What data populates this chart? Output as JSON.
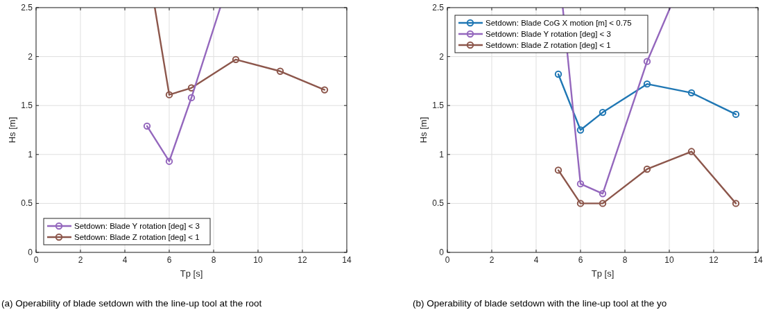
{
  "chart_data": [
    {
      "type": "line",
      "xlabel": "Tp [s]",
      "ylabel": "Hs [m]",
      "xlim": [
        0,
        14
      ],
      "ylim": [
        0,
        2.5
      ],
      "xticks": [
        0,
        2,
        4,
        6,
        8,
        10,
        12,
        14
      ],
      "yticks": [
        0,
        0.5,
        1,
        1.5,
        2,
        2.5
      ],
      "grid": true,
      "legend": "bottom left",
      "marker": "circle",
      "line_style": "solid",
      "annotations": [
        "(a) Operability of blade setdown with the line-up tool at the root"
      ],
      "series": [
        {
          "name": "Setdown: Blade Y rotation [deg] < 3",
          "color": "#9467bd",
          "x": [
            5,
            6,
            7
          ],
          "values": [
            1.29,
            0.93,
            1.58
          ]
        },
        {
          "name": "Setdown: Blade Z rotation [deg] < 1",
          "color": "#8c564b",
          "x": [
            6,
            7,
            9,
            11,
            13
          ],
          "values": [
            1.61,
            1.68,
            1.97,
            1.85,
            1.66
          ]
        },
        {
          "color": "#9467bd",
          "x": [
            7,
            8.3
          ],
          "values": [
            1.58,
            2.5
          ],
          "marker": "none"
        },
        {
          "color": "#8c564b",
          "x": [
            5.35,
            6
          ],
          "values": [
            2.5,
            1.61
          ],
          "marker": "none"
        }
      ]
    },
    {
      "type": "line",
      "xlabel": "Tp [s]",
      "ylabel": "Hs [m]",
      "xlim": [
        0,
        14
      ],
      "ylim": [
        0,
        2.5
      ],
      "xticks": [
        0,
        2,
        4,
        6,
        8,
        10,
        12,
        14
      ],
      "yticks": [
        0,
        0.5,
        1,
        1.5,
        2,
        2.5
      ],
      "grid": true,
      "legend": "top left",
      "marker": "circle",
      "line_style": "solid",
      "annotations": [
        "(b) Operability of blade setdown with the line-up tool at the yo"
      ],
      "series": [
        {
          "name": "Setdown: Blade CoG X motion [m] < 0.75",
          "color": "#1f77b4",
          "x": [
            5,
            6,
            7,
            9,
            11,
            13
          ],
          "values": [
            1.82,
            1.25,
            1.43,
            1.72,
            1.63,
            1.41
          ]
        },
        {
          "name": "Setdown: Blade Y rotation [deg] < 3",
          "color": "#9467bd",
          "x": [
            6,
            7,
            9
          ],
          "values": [
            0.7,
            0.6,
            1.95
          ]
        },
        {
          "name": "Setdown: Blade Z rotation [deg] < 1",
          "color": "#8c564b",
          "x": [
            5,
            6,
            7,
            9,
            11,
            13
          ],
          "values": [
            0.84,
            0.5,
            0.5,
            0.85,
            1.03,
            0.5
          ]
        },
        {
          "color": "#9467bd",
          "x": [
            5.2,
            6
          ],
          "values": [
            2.5,
            0.7
          ],
          "marker": "none"
        },
        {
          "color": "#9467bd",
          "x": [
            9,
            10.04
          ],
          "values": [
            1.95,
            2.5
          ],
          "marker": "none"
        }
      ]
    }
  ]
}
